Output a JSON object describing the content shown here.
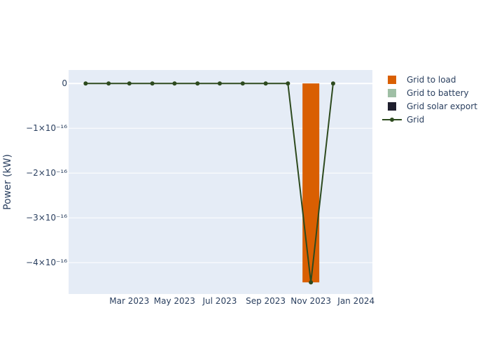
{
  "chart_data": {
    "type": "bar",
    "ylabel": "Power (kW)",
    "x": [
      "2023-01",
      "2023-02",
      "2023-03",
      "2023-04",
      "2023-05",
      "2023-06",
      "2023-07",
      "2023-08",
      "2023-09",
      "2023-10",
      "2023-11",
      "2023-12"
    ],
    "x_tick_labels": [
      {
        "x": "2023-03",
        "label": "Mar 2023"
      },
      {
        "x": "2023-05",
        "label": "May 2023"
      },
      {
        "x": "2023-07",
        "label": "Jul 2023"
      },
      {
        "x": "2023-09",
        "label": "Sep 2023"
      },
      {
        "x": "2023-11",
        "label": "Nov 2023"
      },
      {
        "x": "2024-01",
        "label": "Jan 2024"
      }
    ],
    "y_ticks": [
      {
        "value": 0,
        "label": "0"
      },
      {
        "value": -1e-16,
        "label": "−1×10⁻¹⁶"
      },
      {
        "value": -2e-16,
        "label": "−2×10⁻¹⁶"
      },
      {
        "value": -3e-16,
        "label": "−3×10⁻¹⁶"
      },
      {
        "value": -4e-16,
        "label": "−4×10⁻¹⁶"
      }
    ],
    "ylim": [
      -4.7e-16,
      3e-17
    ],
    "xlim": [
      "2022-12-09",
      "2024-01-23"
    ],
    "grid": true,
    "legend_position": "right",
    "series": [
      {
        "name": "Grid to load",
        "kind": "bar",
        "color": "#d95f02",
        "values": [
          0,
          0,
          0,
          0,
          0,
          0,
          0,
          0,
          0,
          0,
          -4.44e-16,
          0
        ]
      },
      {
        "name": "Grid to battery",
        "kind": "bar",
        "color": "#9fbfa5",
        "values": [
          0,
          0,
          0,
          0,
          0,
          0,
          0,
          0,
          0,
          0,
          0,
          0
        ]
      },
      {
        "name": "Grid solar export",
        "kind": "bar",
        "color": "#1f1f2e",
        "values": [
          0,
          0,
          0,
          0,
          0,
          0,
          0,
          0,
          0,
          0,
          0,
          0
        ]
      },
      {
        "name": "Grid",
        "kind": "line",
        "color": "#2d4a1e",
        "values": [
          0,
          0,
          0,
          0,
          0,
          0,
          0,
          0,
          0,
          0,
          -4.44e-16,
          0
        ]
      }
    ]
  }
}
